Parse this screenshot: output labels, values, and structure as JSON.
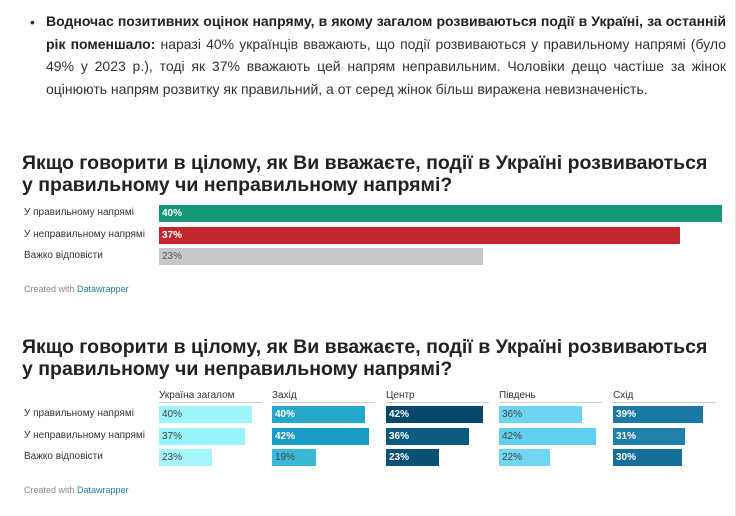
{
  "intro": {
    "bold_text": "Водночас позитивних оцінок  напряму, в якому загалом розвиваються події в Україні, за останній рік поменшало:",
    "text": " наразі 40% українців вважають, що події розвиваються у правильному напрямі (було 49% у 2023 р.), тоді як  37% вважають цей напрям неправильним.  Чоловіки дещо частіше за жінок оцінюють напрям розвитку як правильний, а от серед жінок більш виражена невизначеність."
  },
  "chart1_title": "Якщо говорити в цілому, як Ви вважаєте, події в Україні розвиваються у правильному чи неправильному напрямі?",
  "chart2_title": "Якщо говорити в цілому, як Ви вважаєте, події в Україні розвиваються у правильному чи неправильному напрямі?",
  "credit": {
    "prefix": "Created with ",
    "brand": "Datawrapper"
  },
  "chart_data": [
    {
      "type": "bar",
      "title": "Якщо говорити в цілому, як Ви вважаєте, події в Україні розвиваються у правильному чи неправильному напрямі?",
      "categories": [
        "У правильному напрямі",
        "У неправильному напрямі",
        "Важко відповісти"
      ],
      "values": [
        40,
        37,
        23
      ],
      "value_labels": [
        "40%",
        "37%",
        "23%"
      ],
      "colors": [
        "#15977a",
        "#c1272d",
        "#c8c8c8"
      ],
      "xlim": [
        0,
        40
      ]
    },
    {
      "type": "bar",
      "title": "Якщо говорити в цілому, як Ви вважаєте, події в Україні розвиваються у правильному чи неправильному напрямі?",
      "categories": [
        "У правильному напрямі",
        "У неправильному напрямі",
        "Важко відповісти"
      ],
      "series": [
        {
          "name": "Україна загалом",
          "values": [
            40,
            37,
            23
          ],
          "labels": [
            "40%",
            "37%",
            "23%"
          ],
          "colors": [
            "#9ef4fb",
            "#98f3fb",
            "#a5f5fc"
          ]
        },
        {
          "name": "Захід",
          "values": [
            40,
            42,
            19
          ],
          "labels": [
            "40%",
            "42%",
            "19%"
          ],
          "colors": [
            "#25a6ca",
            "#1b9cc6",
            "#3ab8d8"
          ]
        },
        {
          "name": "Центр",
          "values": [
            42,
            36,
            23
          ],
          "labels": [
            "42%",
            "36%",
            "23%"
          ],
          "colors": [
            "#05486a",
            "#0b5a80",
            "#0a4f74"
          ]
        },
        {
          "name": "Південь",
          "values": [
            36,
            42,
            22
          ],
          "labels": [
            "36%",
            "42%",
            "22%"
          ],
          "colors": [
            "#6dd5f2",
            "#5fd0ef",
            "#6fd7f3"
          ]
        },
        {
          "name": "Схід",
          "values": [
            39,
            31,
            30
          ],
          "labels": [
            "39%",
            "31%",
            "30%"
          ],
          "colors": [
            "#1a79a4",
            "#1f80aa",
            "#166f98"
          ]
        }
      ],
      "xlim_per_column": [
        0,
        42
      ]
    }
  ]
}
